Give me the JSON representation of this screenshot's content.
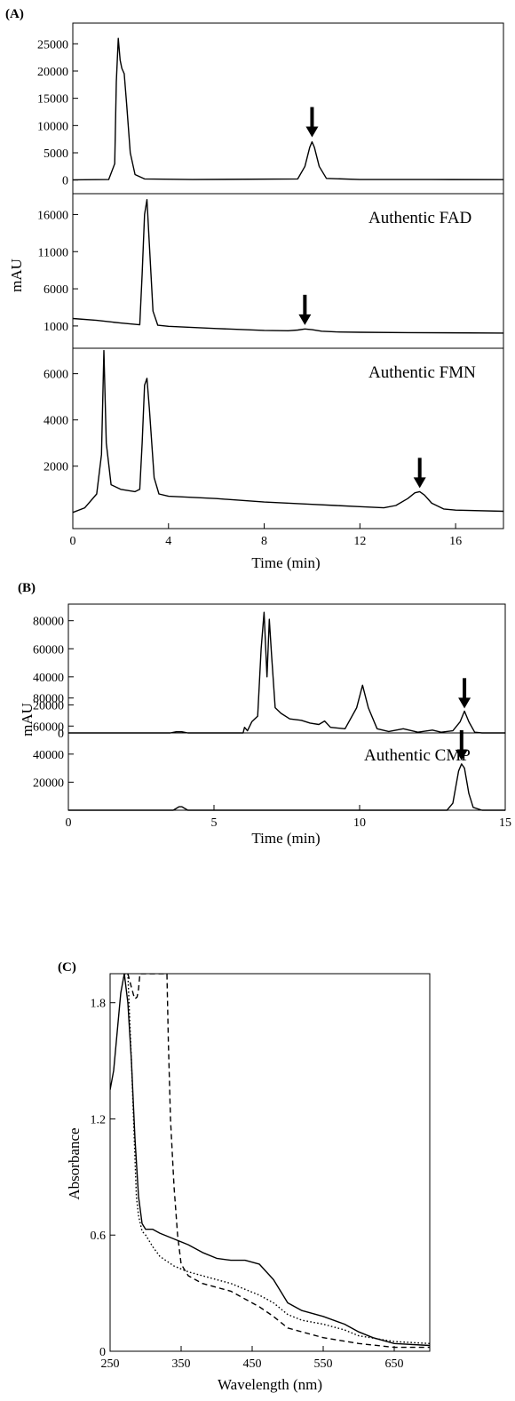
{
  "panels": [
    {
      "label": "(A)"
    },
    {
      "label": "(B)"
    },
    {
      "label": "(C)"
    }
  ],
  "chart_data": [
    {
      "type": "line",
      "panel": "(A)",
      "xlabel": "Time   (min)",
      "ylabel": "mAU",
      "xlim": [
        0,
        18
      ],
      "xticks": [
        0,
        4,
        8,
        12,
        16
      ],
      "subplots": [
        {
          "annotation": "",
          "ylim": [
            -2500,
            28800
          ],
          "yticks": [
            0,
            5000,
            10000,
            15000,
            20000,
            25000
          ],
          "arrow_at": {
            "x": 10.0,
            "y": 7200
          },
          "series": [
            {
              "x": [
                0,
                1.5,
                1.75,
                1.82,
                1.9,
                1.98,
                2.05,
                2.15,
                2.25,
                2.4,
                2.6,
                3.0,
                5,
                9.4,
                9.7,
                9.9,
                10.0,
                10.1,
                10.3,
                10.6,
                12,
                15,
                18
              ],
              "y": [
                50,
                100,
                3000,
                18000,
                26000,
                22000,
                20500,
                19500,
                14000,
                5000,
                1000,
                200,
                100,
                200,
                2500,
                6000,
                7000,
                6000,
                2500,
                300,
                100,
                100,
                80
              ]
            }
          ]
        },
        {
          "annotation": "Authentic FAD",
          "ylim": [
            -2000,
            18800
          ],
          "yticks": [
            1000,
            6000,
            11000,
            16000
          ],
          "arrow_at": {
            "x": 9.7,
            "y": 650
          },
          "series": [
            {
              "x": [
                0,
                1,
                2,
                2.8,
                2.9,
                3.0,
                3.1,
                3.2,
                3.35,
                3.55,
                4,
                6,
                8,
                9.0,
                9.4,
                9.7,
                10.0,
                10.4,
                11,
                12,
                14,
                18
              ],
              "y": [
                2000,
                1750,
                1400,
                1150,
                8000,
                16000,
                18000,
                12000,
                3000,
                1100,
                950,
                650,
                400,
                350,
                450,
                600,
                500,
                300,
                200,
                150,
                100,
                50
              ]
            }
          ]
        },
        {
          "annotation": "Authentic FMN",
          "ylim": [
            -700,
            7100
          ],
          "yticks": [
            2000,
            4000,
            6000
          ],
          "arrow_at": {
            "x": 14.5,
            "y": 900
          },
          "series": [
            {
              "x": [
                0,
                0.5,
                1.0,
                1.2,
                1.3,
                1.4,
                1.6,
                2.0,
                2.6,
                2.8,
                2.9,
                3.0,
                3.1,
                3.2,
                3.4,
                3.6,
                4,
                6,
                8,
                10,
                11,
                12,
                13,
                13.5,
                14,
                14.3,
                14.5,
                14.7,
                15,
                15.5,
                16,
                18
              ],
              "y": [
                0,
                200,
                800,
                2500,
                7000,
                3000,
                1200,
                1000,
                900,
                1000,
                3000,
                5500,
                5800,
                4500,
                1500,
                800,
                700,
                600,
                450,
                350,
                300,
                250,
                200,
                300,
                600,
                850,
                900,
                750,
                400,
                150,
                100,
                50
              ]
            }
          ]
        }
      ]
    },
    {
      "type": "line",
      "panel": "(B)",
      "xlabel": "Time   (min)",
      "ylabel": "mAU",
      "xlim": [
        0,
        15
      ],
      "xticks": [
        0,
        5,
        10,
        15
      ],
      "subplots": [
        {
          "annotation": "",
          "ylim": [
            0,
            90000
          ],
          "yticks": [
            0,
            20000,
            40000,
            60000,
            80000
          ],
          "arrow_at": {
            "x": 13.6,
            "y": 15000
          },
          "series": [
            {
              "x": [
                0,
                3.5,
                3.7,
                3.9,
                4.1,
                6.0,
                6.05,
                6.15,
                6.3,
                6.5,
                6.62,
                6.72,
                6.82,
                6.9,
                6.98,
                7.1,
                7.3,
                7.6,
                8.0,
                8.3,
                8.6,
                8.8,
                9.0,
                9.5,
                9.9,
                10.1,
                10.3,
                10.6,
                11.0,
                11.5,
                12.0,
                12.5,
                12.8,
                13.2,
                13.45,
                13.6,
                13.75,
                13.95,
                14.2,
                15.0
              ],
              "y": [
                0,
                0,
                800,
                800,
                0,
                0,
                4000,
                1500,
                8000,
                12000,
                60000,
                86000,
                40000,
                81000,
                55000,
                18000,
                14000,
                10000,
                9000,
                7000,
                6000,
                8500,
                4000,
                3000,
                18000,
                34000,
                18000,
                3000,
                1000,
                3000,
                500,
                2000,
                500,
                1500,
                8000,
                15500,
                8000,
                500,
                0,
                0
              ]
            }
          ]
        },
        {
          "annotation": "Authentic CMP",
          "ylim": [
            0,
            90000
          ],
          "yticks": [
            20000,
            40000,
            60000,
            80000
          ],
          "arrow_at": {
            "x": 13.5,
            "y": 33000
          },
          "series": [
            {
              "x": [
                0,
                3.6,
                3.8,
                3.9,
                4.1,
                13.0,
                13.2,
                13.4,
                13.5,
                13.6,
                13.75,
                13.9,
                14.2,
                15.0
              ],
              "y": [
                0,
                0,
                2500,
                2500,
                0,
                0,
                5000,
                28000,
                33000,
                30000,
                12000,
                2000,
                0,
                0
              ]
            }
          ]
        }
      ]
    },
    {
      "type": "line",
      "panel": "(C)",
      "xlabel": "Wavelength      (nm)",
      "ylabel": "Absorbance",
      "xlim": [
        250,
        700
      ],
      "ylim": [
        0,
        1.95
      ],
      "xticks": [
        250,
        350,
        450,
        550,
        650
      ],
      "yticks": [
        0,
        0.6,
        1.2,
        1.8
      ],
      "series": [
        {
          "style": "solid",
          "x": [
            250,
            255,
            260,
            265,
            270,
            275,
            280,
            285,
            290,
            295,
            300,
            310,
            320,
            340,
            360,
            380,
            400,
            420,
            440,
            460,
            480,
            490,
            500,
            520,
            550,
            580,
            600,
            620,
            650,
            700
          ],
          "y": [
            1.35,
            1.45,
            1.65,
            1.85,
            1.95,
            1.8,
            1.5,
            1.1,
            0.8,
            0.66,
            0.63,
            0.63,
            0.61,
            0.58,
            0.55,
            0.51,
            0.48,
            0.47,
            0.47,
            0.45,
            0.37,
            0.31,
            0.25,
            0.21,
            0.18,
            0.14,
            0.1,
            0.07,
            0.04,
            0.03
          ]
        },
        {
          "style": "dotted",
          "x": [
            270,
            275,
            280,
            285,
            287,
            290,
            295,
            300,
            310,
            320,
            340,
            360,
            380,
            400,
            420,
            440,
            460,
            480,
            490,
            500,
            520,
            550,
            580,
            600,
            650,
            700
          ],
          "y": [
            1.95,
            1.95,
            1.5,
            1.0,
            0.8,
            0.7,
            0.62,
            0.6,
            0.54,
            0.49,
            0.44,
            0.41,
            0.39,
            0.37,
            0.35,
            0.32,
            0.29,
            0.25,
            0.22,
            0.19,
            0.16,
            0.14,
            0.11,
            0.08,
            0.05,
            0.04
          ]
        },
        {
          "style": "dashed",
          "x": [
            275,
            280,
            283,
            285,
            288,
            290,
            292,
            330,
            332,
            335,
            340,
            345,
            350,
            360,
            380,
            400,
            420,
            440,
            460,
            480,
            500,
            550,
            600,
            650,
            700
          ],
          "y": [
            1.95,
            1.88,
            1.84,
            1.82,
            1.83,
            1.87,
            1.95,
            1.95,
            1.6,
            1.2,
            0.85,
            0.6,
            0.45,
            0.39,
            0.35,
            0.33,
            0.31,
            0.27,
            0.23,
            0.18,
            0.12,
            0.07,
            0.04,
            0.02,
            0.02
          ]
        }
      ]
    }
  ]
}
